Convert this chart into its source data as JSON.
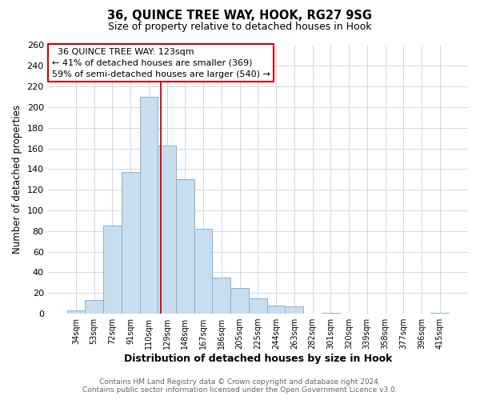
{
  "title": "36, QUINCE TREE WAY, HOOK, RG27 9SG",
  "subtitle": "Size of property relative to detached houses in Hook",
  "xlabel": "Distribution of detached houses by size in Hook",
  "ylabel": "Number of detached properties",
  "bar_color": "#c8ddef",
  "bar_edge_color": "#8ab4cc",
  "background_color": "#ffffff",
  "grid_color": "#d0d8e0",
  "categories": [
    "34sqm",
    "53sqm",
    "72sqm",
    "91sqm",
    "110sqm",
    "129sqm",
    "148sqm",
    "167sqm",
    "186sqm",
    "205sqm",
    "225sqm",
    "244sqm",
    "263sqm",
    "282sqm",
    "301sqm",
    "320sqm",
    "339sqm",
    "358sqm",
    "377sqm",
    "396sqm",
    "415sqm"
  ],
  "values": [
    3,
    13,
    85,
    137,
    210,
    163,
    130,
    82,
    35,
    25,
    15,
    8,
    7,
    0,
    1,
    0,
    0,
    0,
    0,
    0,
    1
  ],
  "ylim": [
    0,
    260
  ],
  "yticks": [
    0,
    20,
    40,
    60,
    80,
    100,
    120,
    140,
    160,
    180,
    200,
    220,
    240,
    260
  ],
  "property_line_bin_index": 4.68,
  "annotation_title": "36 QUINCE TREE WAY: 123sqm",
  "annotation_line1": "← 41% of detached houses are smaller (369)",
  "annotation_line2": "59% of semi-detached houses are larger (540) →",
  "annotation_box_color": "#ffffff",
  "annotation_box_edge": "#cc0000",
  "vline_color": "#cc0000",
  "footer_line1": "Contains HM Land Registry data © Crown copyright and database right 2024.",
  "footer_line2": "Contains public sector information licensed under the Open Government Licence v3.0."
}
